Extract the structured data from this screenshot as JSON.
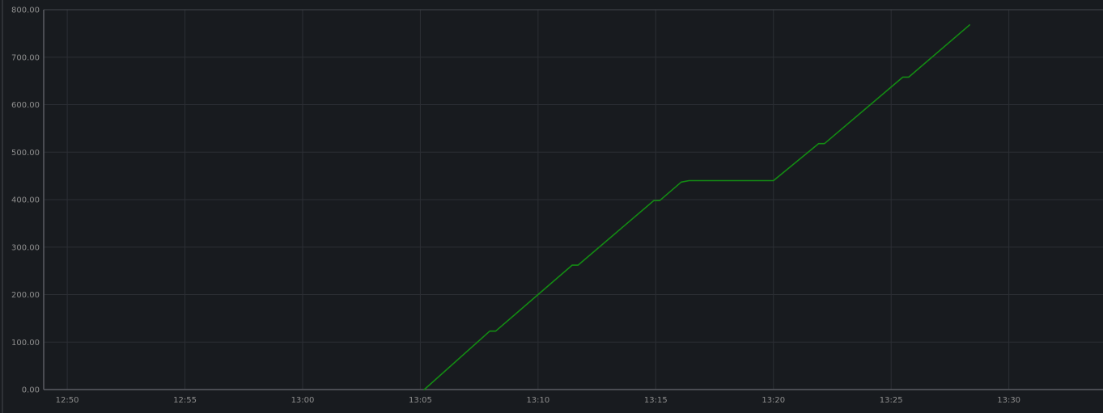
{
  "chart_data": {
    "type": "line",
    "title": "",
    "xlabel": "",
    "ylabel": "",
    "grid": true,
    "legend": "none",
    "xlim": [
      "12:49",
      "13:34"
    ],
    "ylim": [
      0,
      800
    ],
    "x_ticks": [
      "12:50",
      "12:55",
      "13:00",
      "13:05",
      "13:10",
      "13:15",
      "13:20",
      "13:25",
      "13:30"
    ],
    "y_ticks": [
      "0.00",
      "100.00",
      "200.00",
      "300.00",
      "400.00",
      "500.00",
      "600.00",
      "700.00",
      "800.00"
    ],
    "colors": {
      "background": "#181b1f",
      "line": "#138b13",
      "grid": "#2c2f35",
      "text": "#8e8e8e",
      "axis": "#5a5d63"
    },
    "series": [
      {
        "color": "#138b13",
        "points": [
          {
            "x": "13:05:10",
            "y": 0
          },
          {
            "x": "13:07:57",
            "y": 123
          },
          {
            "x": "13:08:12",
            "y": 123
          },
          {
            "x": "13:11:27",
            "y": 262
          },
          {
            "x": "13:11:42",
            "y": 262
          },
          {
            "x": "13:14:55",
            "y": 398
          },
          {
            "x": "13:15:10",
            "y": 398
          },
          {
            "x": "13:16:05",
            "y": 437
          },
          {
            "x": "13:16:25",
            "y": 440
          },
          {
            "x": "13:20:00",
            "y": 440
          },
          {
            "x": "13:21:55",
            "y": 518
          },
          {
            "x": "13:22:10",
            "y": 518
          },
          {
            "x": "13:25:30",
            "y": 658
          },
          {
            "x": "13:25:45",
            "y": 658
          },
          {
            "x": "13:28:20",
            "y": 768
          }
        ]
      }
    ]
  }
}
